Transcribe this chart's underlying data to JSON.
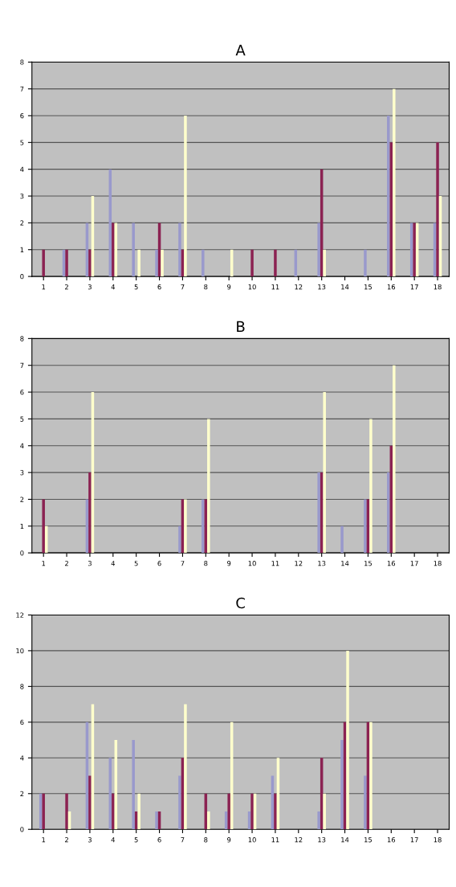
{
  "chart_data": [
    {
      "type": "bar",
      "title": "A",
      "categories": [
        "1",
        "2",
        "3",
        "4",
        "5",
        "6",
        "7",
        "8",
        "9",
        "10",
        "11",
        "12",
        "13",
        "14",
        "15",
        "16",
        "17",
        "18"
      ],
      "series": [
        {
          "color": "#9999cc",
          "values": [
            0,
            1,
            2,
            4,
            2,
            1,
            2,
            1,
            0,
            0,
            0,
            1,
            2,
            0,
            1,
            6,
            2,
            2
          ]
        },
        {
          "color": "#8b2252",
          "values": [
            1,
            1,
            1,
            2,
            0,
            2,
            1,
            0,
            0,
            1,
            1,
            0,
            4,
            0,
            0,
            5,
            2,
            5
          ]
        },
        {
          "color": "#ffffcc",
          "values": [
            0,
            0,
            3,
            2,
            1,
            1,
            6,
            0,
            1,
            0,
            0,
            0,
            1,
            0,
            0,
            7,
            2,
            3
          ]
        }
      ],
      "ylim": [
        0,
        8
      ],
      "yticks": [
        0,
        1,
        2,
        3,
        4,
        5,
        6,
        7,
        8
      ],
      "grid": "y"
    },
    {
      "type": "bar",
      "title": "B",
      "categories": [
        "1",
        "2",
        "3",
        "4",
        "5",
        "6",
        "7",
        "8",
        "9",
        "10",
        "11",
        "12",
        "13",
        "14",
        "15",
        "16",
        "17",
        "18"
      ],
      "series": [
        {
          "color": "#9999cc",
          "values": [
            0,
            0,
            2,
            0,
            0,
            0,
            1,
            2,
            0,
            0,
            0,
            0,
            3,
            1,
            2,
            3,
            0,
            0
          ]
        },
        {
          "color": "#8b2252",
          "values": [
            2,
            0,
            3,
            0,
            0,
            0,
            2,
            2,
            0,
            0,
            0,
            0,
            3,
            0,
            2,
            4,
            0,
            0
          ]
        },
        {
          "color": "#ffffcc",
          "values": [
            1,
            0,
            6,
            0,
            0,
            0,
            2,
            5,
            0,
            0,
            0,
            0,
            6,
            0,
            5,
            7,
            0,
            0
          ]
        }
      ],
      "ylim": [
        0,
        8
      ],
      "yticks": [
        0,
        1,
        2,
        3,
        4,
        5,
        6,
        7,
        8
      ],
      "grid": "y"
    },
    {
      "type": "bar",
      "title": "C",
      "categories": [
        "1",
        "2",
        "3",
        "4",
        "5",
        "6",
        "7",
        "8",
        "9",
        "10",
        "11",
        "12",
        "13",
        "14",
        "15",
        "16",
        "17",
        "18"
      ],
      "series": [
        {
          "color": "#9999cc",
          "values": [
            2,
            0,
            6,
            4,
            5,
            1,
            3,
            0,
            1,
            1,
            3,
            0,
            1,
            5,
            3,
            0,
            0,
            0
          ]
        },
        {
          "color": "#8b2252",
          "values": [
            2,
            2,
            3,
            2,
            1,
            1,
            4,
            2,
            2,
            2,
            2,
            0,
            4,
            6,
            6,
            0,
            0,
            0
          ]
        },
        {
          "color": "#ffffcc",
          "values": [
            0,
            1,
            7,
            5,
            2,
            0,
            7,
            1,
            6,
            2,
            4,
            0,
            2,
            10,
            6,
            0,
            0,
            0
          ]
        }
      ],
      "ylim": [
        0,
        12
      ],
      "yticks": [
        0,
        2,
        4,
        6,
        8,
        10,
        12
      ],
      "grid": "y"
    }
  ]
}
